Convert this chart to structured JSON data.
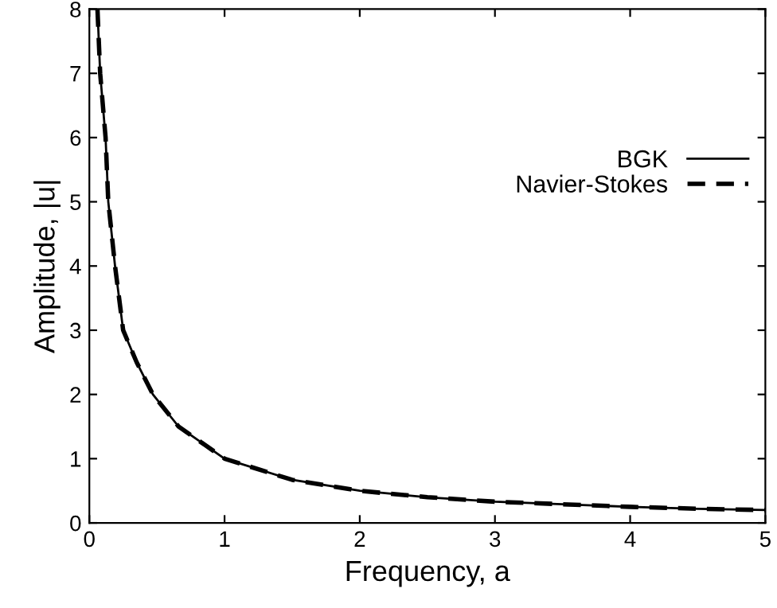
{
  "chart_data": {
    "type": "line",
    "xlabel": "Frequency, a",
    "ylabel": "Amplitude, |u|",
    "x": [
      0.06,
      0.08,
      0.12,
      0.14,
      0.19,
      0.25,
      0.35,
      0.47,
      0.66,
      1,
      1.5,
      2,
      2.5,
      3,
      3.5,
      4,
      4.5,
      5
    ],
    "series": [
      {
        "name": "BGK",
        "color": "#000000",
        "line_style": "solid",
        "values": [
          8,
          7,
          6,
          5,
          4,
          3,
          2.5,
          2,
          1.5,
          1,
          0.67,
          0.5,
          0.4,
          0.33,
          0.29,
          0.25,
          0.22,
          0.2
        ]
      },
      {
        "name": "Navier-Stokes",
        "color": "#000000",
        "line_style": "dashed",
        "values": [
          8,
          7,
          6,
          5,
          4,
          3,
          2.5,
          2,
          1.5,
          1,
          0.67,
          0.5,
          0.4,
          0.33,
          0.29,
          0.25,
          0.22,
          0.2
        ]
      }
    ],
    "xlim": [
      0,
      5
    ],
    "ylim": [
      0,
      8
    ],
    "xticks": [
      0,
      1,
      2,
      3,
      4,
      5
    ],
    "yticks": [
      0,
      1,
      2,
      3,
      4,
      5,
      6,
      7,
      8
    ],
    "grid": false,
    "legend": "right"
  }
}
